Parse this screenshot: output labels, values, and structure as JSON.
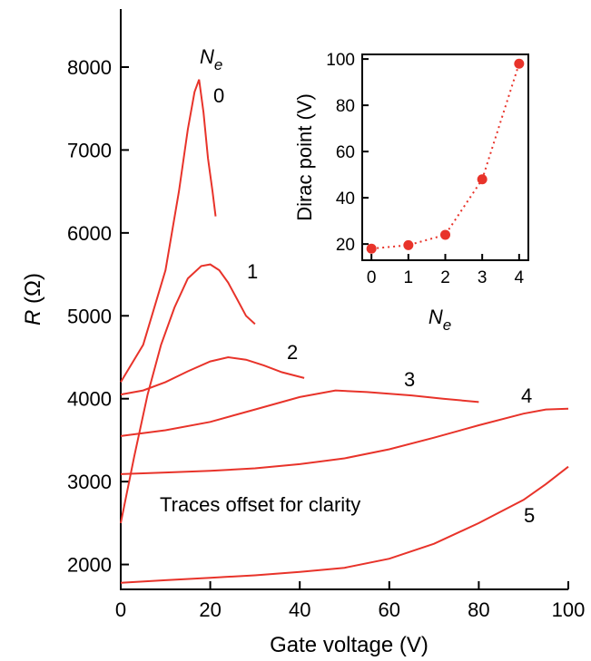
{
  "chart_data": [
    {
      "type": "line",
      "title": "",
      "xlabel": "Gate voltage (V)",
      "ylabel_symbol": "R",
      "ylabel_unit": "(Ω)",
      "xlim": [
        0,
        100
      ],
      "ylim": [
        1700,
        8700
      ],
      "xticks": [
        0,
        20,
        40,
        60,
        80,
        100
      ],
      "yticks": [
        2000,
        3000,
        4000,
        5000,
        6000,
        7000,
        8000
      ],
      "legend_header": "N",
      "legend_header_sub": "e",
      "note": "Traces offset for clarity",
      "series": [
        {
          "name": "0",
          "x": [
            0,
            5,
            10,
            13,
            15,
            16.5,
            17.5,
            18.5,
            19.5,
            20.5,
            21.2
          ],
          "y": [
            4200,
            4650,
            5550,
            6500,
            7250,
            7700,
            7850,
            7450,
            6900,
            6500,
            6200
          ]
        },
        {
          "name": "1",
          "x": [
            0,
            3,
            6,
            9,
            12,
            15,
            18,
            20,
            22,
            24,
            26,
            28,
            30
          ],
          "y": [
            2500,
            3300,
            4050,
            4650,
            5100,
            5450,
            5600,
            5620,
            5550,
            5400,
            5200,
            5000,
            4900
          ]
        },
        {
          "name": "2",
          "x": [
            0,
            5,
            10,
            15,
            20,
            24,
            28,
            32,
            36,
            41
          ],
          "y": [
            4050,
            4100,
            4200,
            4330,
            4450,
            4500,
            4470,
            4400,
            4320,
            4250
          ]
        },
        {
          "name": "3",
          "x": [
            0,
            10,
            20,
            30,
            40,
            48,
            55,
            65,
            72,
            80
          ],
          "y": [
            3550,
            3620,
            3720,
            3870,
            4020,
            4100,
            4080,
            4040,
            4000,
            3960
          ]
        },
        {
          "name": "4",
          "x": [
            0,
            10,
            20,
            30,
            40,
            50,
            60,
            70,
            80,
            90,
            95,
            100
          ],
          "y": [
            3090,
            3110,
            3130,
            3160,
            3210,
            3280,
            3390,
            3530,
            3680,
            3820,
            3870,
            3880
          ]
        },
        {
          "name": "5",
          "x": [
            0,
            10,
            20,
            30,
            40,
            50,
            60,
            70,
            80,
            90,
            95,
            100
          ],
          "y": [
            1780,
            1810,
            1840,
            1870,
            1910,
            1960,
            2070,
            2250,
            2500,
            2780,
            2970,
            3180
          ]
        }
      ]
    },
    {
      "type": "scatter",
      "title": "",
      "xlabel": "N",
      "xlabel_sub": "e",
      "ylabel": "Dirac point (V)",
      "xlim": [
        0,
        4
      ],
      "ylim": [
        15,
        100
      ],
      "xticks": [
        0,
        1,
        2,
        3,
        4
      ],
      "yticks": [
        20,
        40,
        60,
        80,
        100
      ],
      "series": [
        {
          "name": "",
          "x": [
            0,
            1,
            2,
            3,
            4
          ],
          "y": [
            18,
            19.5,
            24,
            48,
            98
          ]
        }
      ]
    }
  ],
  "colors": {
    "trace": "#e8332a",
    "axis": "#000000"
  }
}
